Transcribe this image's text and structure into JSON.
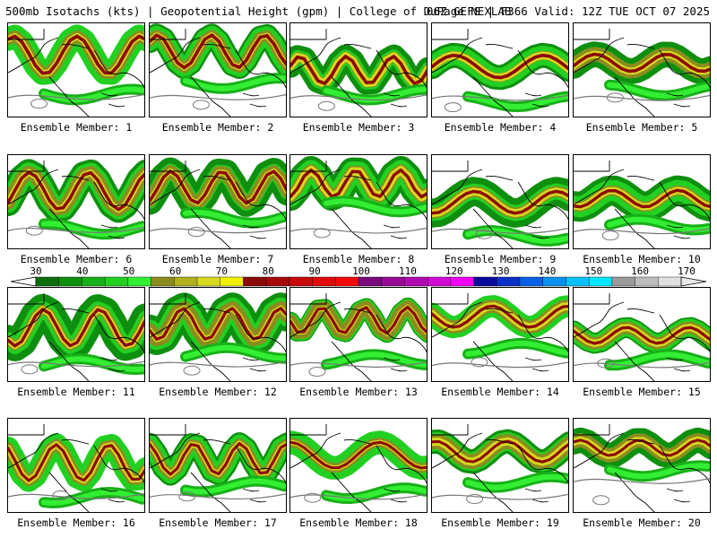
{
  "header": {
    "title_left": "500mb Isotachs (kts) | Geopotential Height (gpm) | College of DuPage NEXLAB",
    "title_right": "06Z GEFS | F366 Valid: 12Z TUE OCT 07 2025"
  },
  "colorbar": {
    "ticks": [
      "30",
      "40",
      "50",
      "60",
      "70",
      "80",
      "90",
      "100",
      "110",
      "120",
      "130",
      "140",
      "150",
      "160",
      "170"
    ],
    "colors": [
      "#0b6e0b",
      "#0f8f0f",
      "#18b018",
      "#22d022",
      "#33ee33",
      "#8c8c1e",
      "#b0b020",
      "#d8d820",
      "#f0f000",
      "#8b0a0a",
      "#a80a0a",
      "#c80a0a",
      "#e00a0a",
      "#f20a0a",
      "#7a0a7a",
      "#960a96",
      "#b00ab0",
      "#d00ad0",
      "#f000f0",
      "#0a0a9a",
      "#0a30c8",
      "#0a60e6",
      "#0a90f0",
      "#0ac0f8",
      "#00e8ff",
      "#9a9a9a",
      "#bdbdbd",
      "#e0e0e0"
    ]
  },
  "panel_label_prefix": "Ensemble Member: ",
  "members": [
    "1",
    "2",
    "3",
    "4",
    "5",
    "6",
    "7",
    "8",
    "9",
    "10",
    "11",
    "12",
    "13",
    "14",
    "15",
    "16",
    "17",
    "18",
    "19",
    "20"
  ]
}
